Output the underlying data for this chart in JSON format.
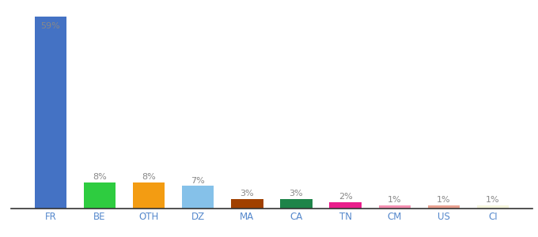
{
  "categories": [
    "FR",
    "BE",
    "OTH",
    "DZ",
    "MA",
    "CA",
    "TN",
    "CM",
    "US",
    "CI"
  ],
  "values": [
    59,
    8,
    8,
    7,
    3,
    3,
    2,
    1,
    1,
    1
  ],
  "bar_colors": [
    "#4472c4",
    "#2ecc40",
    "#f39c12",
    "#85c1e9",
    "#a04000",
    "#1e8449",
    "#e91e8c",
    "#f48fb1",
    "#e8a090",
    "#f5f5dc"
  ],
  "labels": [
    "59%",
    "8%",
    "8%",
    "7%",
    "3%",
    "3%",
    "2%",
    "1%",
    "1%",
    "1%"
  ],
  "label_color": "#888888",
  "background_color": "#ffffff",
  "ylim": [
    0,
    62
  ],
  "bar_width": 0.65,
  "label_inside_threshold": 10,
  "tick_color": "#5588cc",
  "tick_fontsize": 8.5
}
